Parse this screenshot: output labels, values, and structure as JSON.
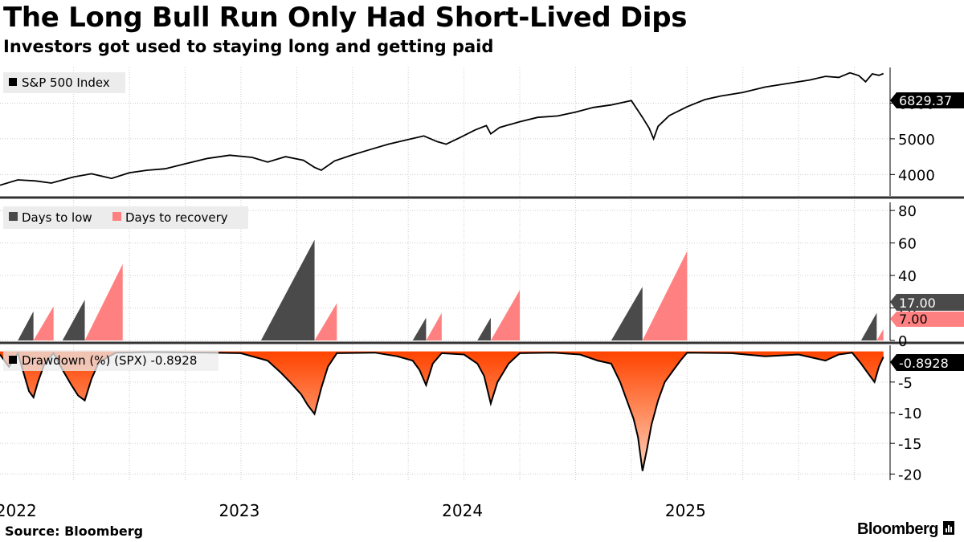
{
  "title": "The Long Bull Run Only Had Short-Lived Dips",
  "subtitle": "Investors got used to staying long and getting paid",
  "source": "Source: Bloomberg",
  "brand": "Bloomberg",
  "colors": {
    "price_line": "#000000",
    "days_to_low": "#4a4a4a",
    "days_to_recovery": "#ff8080",
    "drawdown_top": "#ff4400",
    "drawdown_bottom": "#ffd0b8",
    "grid": "#cccccc",
    "divider": "#333333"
  },
  "x_axis": {
    "start": 2021.92,
    "end": 2025.91,
    "year_labels": [
      {
        "label": "2022",
        "t": 2022.0
      },
      {
        "label": "2023",
        "t": 2023.0
      },
      {
        "label": "2024",
        "t": 2024.0
      },
      {
        "label": "2025",
        "t": 2025.0
      }
    ],
    "quarter_gridlines": [
      2022.25,
      2022.5,
      2022.75,
      2023.0,
      2023.25,
      2023.5,
      2023.75,
      2024.0,
      2024.25,
      2024.5,
      2024.75,
      2025.0,
      2025.25,
      2025.5,
      2025.75
    ]
  },
  "chart_data": [
    {
      "type": "line",
      "name": "price",
      "legend": "S&P 500 Index",
      "last_value_label": "6829.37",
      "ylim": [
        3400,
        7000
      ],
      "yticks": [
        4000,
        5000,
        6000
      ],
      "points": [
        [
          2021.92,
          3700
        ],
        [
          2022.0,
          3850
        ],
        [
          2022.08,
          3820
        ],
        [
          2022.15,
          3760
        ],
        [
          2022.25,
          3930
        ],
        [
          2022.33,
          4020
        ],
        [
          2022.42,
          3890
        ],
        [
          2022.5,
          4050
        ],
        [
          2022.58,
          4120
        ],
        [
          2022.66,
          4160
        ],
        [
          2022.75,
          4300
        ],
        [
          2022.85,
          4450
        ],
        [
          2022.95,
          4540
        ],
        [
          2023.05,
          4480
        ],
        [
          2023.12,
          4350
        ],
        [
          2023.2,
          4500
        ],
        [
          2023.28,
          4400
        ],
        [
          2023.33,
          4200
        ],
        [
          2023.36,
          4120
        ],
        [
          2023.42,
          4380
        ],
        [
          2023.5,
          4550
        ],
        [
          2023.58,
          4700
        ],
        [
          2023.66,
          4850
        ],
        [
          2023.75,
          4980
        ],
        [
          2023.82,
          5080
        ],
        [
          2023.88,
          4920
        ],
        [
          2023.92,
          4850
        ],
        [
          2023.98,
          5030
        ],
        [
          2024.05,
          5250
        ],
        [
          2024.1,
          5370
        ],
        [
          2024.12,
          5140
        ],
        [
          2024.16,
          5320
        ],
        [
          2024.25,
          5480
        ],
        [
          2024.33,
          5600
        ],
        [
          2024.42,
          5640
        ],
        [
          2024.5,
          5750
        ],
        [
          2024.58,
          5880
        ],
        [
          2024.66,
          5950
        ],
        [
          2024.75,
          6070
        ],
        [
          2024.8,
          5600
        ],
        [
          2024.83,
          5300
        ],
        [
          2024.85,
          5000
        ],
        [
          2024.87,
          5350
        ],
        [
          2024.92,
          5650
        ],
        [
          2025.0,
          5900
        ],
        [
          2025.08,
          6100
        ],
        [
          2025.15,
          6200
        ],
        [
          2025.25,
          6300
        ],
        [
          2025.35,
          6450
        ],
        [
          2025.45,
          6550
        ],
        [
          2025.55,
          6650
        ],
        [
          2025.62,
          6750
        ],
        [
          2025.68,
          6720
        ],
        [
          2025.73,
          6850
        ],
        [
          2025.77,
          6770
        ],
        [
          2025.8,
          6600
        ],
        [
          2025.83,
          6820
        ],
        [
          2025.86,
          6780
        ],
        [
          2025.88,
          6829.37
        ]
      ]
    },
    {
      "type": "bar",
      "name": "dips",
      "legend": [
        "Days to low",
        "Days to recovery"
      ],
      "last_low_label": "17.00",
      "last_recovery_label": "7.00",
      "ylim": [
        0,
        85
      ],
      "yticks": [
        0,
        20,
        40,
        60,
        80
      ],
      "triangles": [
        {
          "kind": "low",
          "start": 2022.0,
          "end": 2022.07,
          "value": 18
        },
        {
          "kind": "recovery",
          "start": 2022.07,
          "end": 2022.16,
          "value": 21
        },
        {
          "kind": "low",
          "start": 2022.2,
          "end": 2022.3,
          "value": 25
        },
        {
          "kind": "recovery",
          "start": 2022.3,
          "end": 2022.47,
          "value": 47
        },
        {
          "kind": "low",
          "start": 2023.09,
          "end": 2023.33,
          "value": 62
        },
        {
          "kind": "recovery",
          "start": 2023.33,
          "end": 2023.43,
          "value": 23
        },
        {
          "kind": "low",
          "start": 2023.77,
          "end": 2023.83,
          "value": 14
        },
        {
          "kind": "recovery",
          "start": 2023.83,
          "end": 2023.9,
          "value": 17
        },
        {
          "kind": "low",
          "start": 2024.06,
          "end": 2024.12,
          "value": 14
        },
        {
          "kind": "recovery",
          "start": 2024.12,
          "end": 2024.25,
          "value": 31
        },
        {
          "kind": "low",
          "start": 2024.66,
          "end": 2024.8,
          "value": 33
        },
        {
          "kind": "recovery",
          "start": 2024.8,
          "end": 2025.0,
          "value": 55
        },
        {
          "kind": "low",
          "start": 2025.78,
          "end": 2025.85,
          "value": 17
        },
        {
          "kind": "recovery",
          "start": 2025.85,
          "end": 2025.88,
          "value": 7
        }
      ]
    },
    {
      "type": "area",
      "name": "drawdown",
      "legend": "Drawdown (%) (SPX) -0.8928",
      "last_value_label": "-0.8928",
      "ylim": [
        -21,
        1
      ],
      "yticks": [
        -5,
        -10,
        -15,
        -20
      ],
      "points": [
        [
          2021.92,
          -0.5
        ],
        [
          2021.96,
          -2.5
        ],
        [
          2022.0,
          -0.3
        ],
        [
          2022.03,
          -4.0
        ],
        [
          2022.05,
          -6.5
        ],
        [
          2022.07,
          -7.5
        ],
        [
          2022.09,
          -5.0
        ],
        [
          2022.12,
          -2.0
        ],
        [
          2022.16,
          -0.3
        ],
        [
          2022.2,
          -3.0
        ],
        [
          2022.24,
          -5.5
        ],
        [
          2022.27,
          -7.2
        ],
        [
          2022.3,
          -8.0
        ],
        [
          2022.33,
          -4.5
        ],
        [
          2022.36,
          -2.0
        ],
        [
          2022.4,
          -1.0
        ],
        [
          2022.44,
          -0.2
        ],
        [
          2022.6,
          -0.1
        ],
        [
          2022.86,
          -0.2
        ],
        [
          2023.0,
          -0.3
        ],
        [
          2023.12,
          -1.5
        ],
        [
          2023.18,
          -3.5
        ],
        [
          2023.22,
          -5.0
        ],
        [
          2023.27,
          -7.0
        ],
        [
          2023.3,
          -8.8
        ],
        [
          2023.33,
          -10.2
        ],
        [
          2023.36,
          -6.0
        ],
        [
          2023.39,
          -2.5
        ],
        [
          2023.43,
          -0.3
        ],
        [
          2023.6,
          -0.2
        ],
        [
          2023.7,
          -0.8
        ],
        [
          2023.77,
          -1.5
        ],
        [
          2023.8,
          -3.0
        ],
        [
          2023.83,
          -5.5
        ],
        [
          2023.86,
          -2.0
        ],
        [
          2023.9,
          -0.3
        ],
        [
          2024.0,
          -0.5
        ],
        [
          2024.06,
          -2.0
        ],
        [
          2024.09,
          -4.0
        ],
        [
          2024.12,
          -8.5
        ],
        [
          2024.15,
          -5.0
        ],
        [
          2024.2,
          -2.0
        ],
        [
          2024.25,
          -0.3
        ],
        [
          2024.4,
          -0.2
        ],
        [
          2024.52,
          -0.5
        ],
        [
          2024.6,
          -1.5
        ],
        [
          2024.66,
          -2.0
        ],
        [
          2024.7,
          -5.0
        ],
        [
          2024.73,
          -8.0
        ],
        [
          2024.76,
          -11.0
        ],
        [
          2024.78,
          -14.0
        ],
        [
          2024.8,
          -19.5
        ],
        [
          2024.82,
          -16.0
        ],
        [
          2024.84,
          -12.0
        ],
        [
          2024.87,
          -8.0
        ],
        [
          2024.9,
          -5.0
        ],
        [
          2024.94,
          -3.0
        ],
        [
          2024.97,
          -1.5
        ],
        [
          2025.0,
          -0.2
        ],
        [
          2025.2,
          -0.3
        ],
        [
          2025.35,
          -0.8
        ],
        [
          2025.5,
          -0.5
        ],
        [
          2025.62,
          -1.5
        ],
        [
          2025.68,
          -0.5
        ],
        [
          2025.74,
          -0.2
        ],
        [
          2025.78,
          -2.0
        ],
        [
          2025.81,
          -3.5
        ],
        [
          2025.84,
          -5.0
        ],
        [
          2025.86,
          -2.5
        ],
        [
          2025.88,
          -0.8928
        ]
      ]
    }
  ]
}
